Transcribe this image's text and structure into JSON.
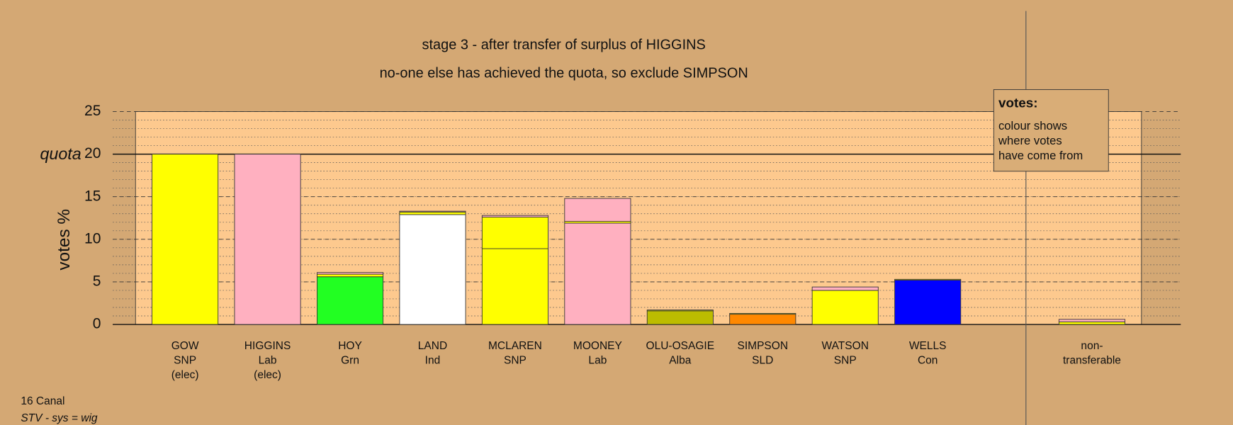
{
  "chart_data": {
    "type": "bar",
    "stacked": true,
    "title": "stage 3 - after transfer of surplus of HIGGINS",
    "subtitle": "no-one else has achieved the quota, so exclude SIMPSON",
    "ylabel": "votes %",
    "ylim": [
      0,
      25
    ],
    "yticks": [
      0,
      5,
      10,
      15,
      20,
      25
    ],
    "minor_step": 1,
    "grid": true,
    "quota": {
      "label": "quota",
      "value": 20
    },
    "bars": [
      {
        "label": [
          "GOW",
          "SNP",
          "(elec)"
        ],
        "segments": [
          {
            "color": "#ffff00",
            "value": 20
          }
        ]
      },
      {
        "label": [
          "HIGGINS",
          "Lab",
          "(elec)"
        ],
        "segments": [
          {
            "color": "#ffb0c0",
            "value": 20
          }
        ]
      },
      {
        "label": [
          "HOY",
          "Grn"
        ],
        "segments": [
          {
            "color": "#22ff22",
            "value": 5.6
          },
          {
            "color": "#ffff00",
            "value": 0.3
          },
          {
            "color": "#ffb0c0",
            "value": 0.2
          }
        ]
      },
      {
        "label": [
          "LAND",
          "Ind"
        ],
        "segments": [
          {
            "color": "#ffffff",
            "value": 12.9
          },
          {
            "color": "#ffff00",
            "value": 0.3
          },
          {
            "color": "#ffb0c0",
            "value": 0.1
          }
        ]
      },
      {
        "label": [
          "MCLAREN",
          "SNP"
        ],
        "segments": [
          {
            "color": "#ffff00",
            "value": 8.9
          },
          {
            "color": "#ffff00",
            "value": 3.7
          },
          {
            "color": "#ffb0c0",
            "value": 0.2
          }
        ]
      },
      {
        "label": [
          "MOONEY",
          "Lab"
        ],
        "segments": [
          {
            "color": "#ffb0c0",
            "value": 11.9
          },
          {
            "color": "#ffff00",
            "value": 0.2
          },
          {
            "color": "#ffb0c0",
            "value": 2.7
          }
        ]
      },
      {
        "label": [
          "OLU-OSAGIE",
          "Alba"
        ],
        "segments": [
          {
            "color": "#bcbc00",
            "value": 1.6
          },
          {
            "color": "#ffff00",
            "value": 0.1
          }
        ]
      },
      {
        "label": [
          "SIMPSON",
          "SLD"
        ],
        "segments": [
          {
            "color": "#ff8800",
            "value": 1.2
          },
          {
            "color": "#ffff00",
            "value": 0.1
          }
        ]
      },
      {
        "label": [
          "WATSON",
          "SNP"
        ],
        "segments": [
          {
            "color": "#ffff00",
            "value": 4.0
          },
          {
            "color": "#ffb0c0",
            "value": 0.4
          }
        ]
      },
      {
        "label": [
          "WELLS",
          "Con"
        ],
        "segments": [
          {
            "color": "#0000ff",
            "value": 5.2
          },
          {
            "color": "#ffff00",
            "value": 0.1
          }
        ]
      }
    ],
    "nontransferable": {
      "label": [
        "non-",
        "transferable"
      ],
      "segments": [
        {
          "color": "#ffff00",
          "value": 0.3
        },
        {
          "color": "#ffb0c0",
          "value": 0.3
        }
      ]
    },
    "note": {
      "title": "votes:",
      "lines": [
        "colour shows",
        "where votes",
        "have come from"
      ]
    }
  },
  "footer": [
    "16 Canal",
    "STV - sys = wig"
  ]
}
